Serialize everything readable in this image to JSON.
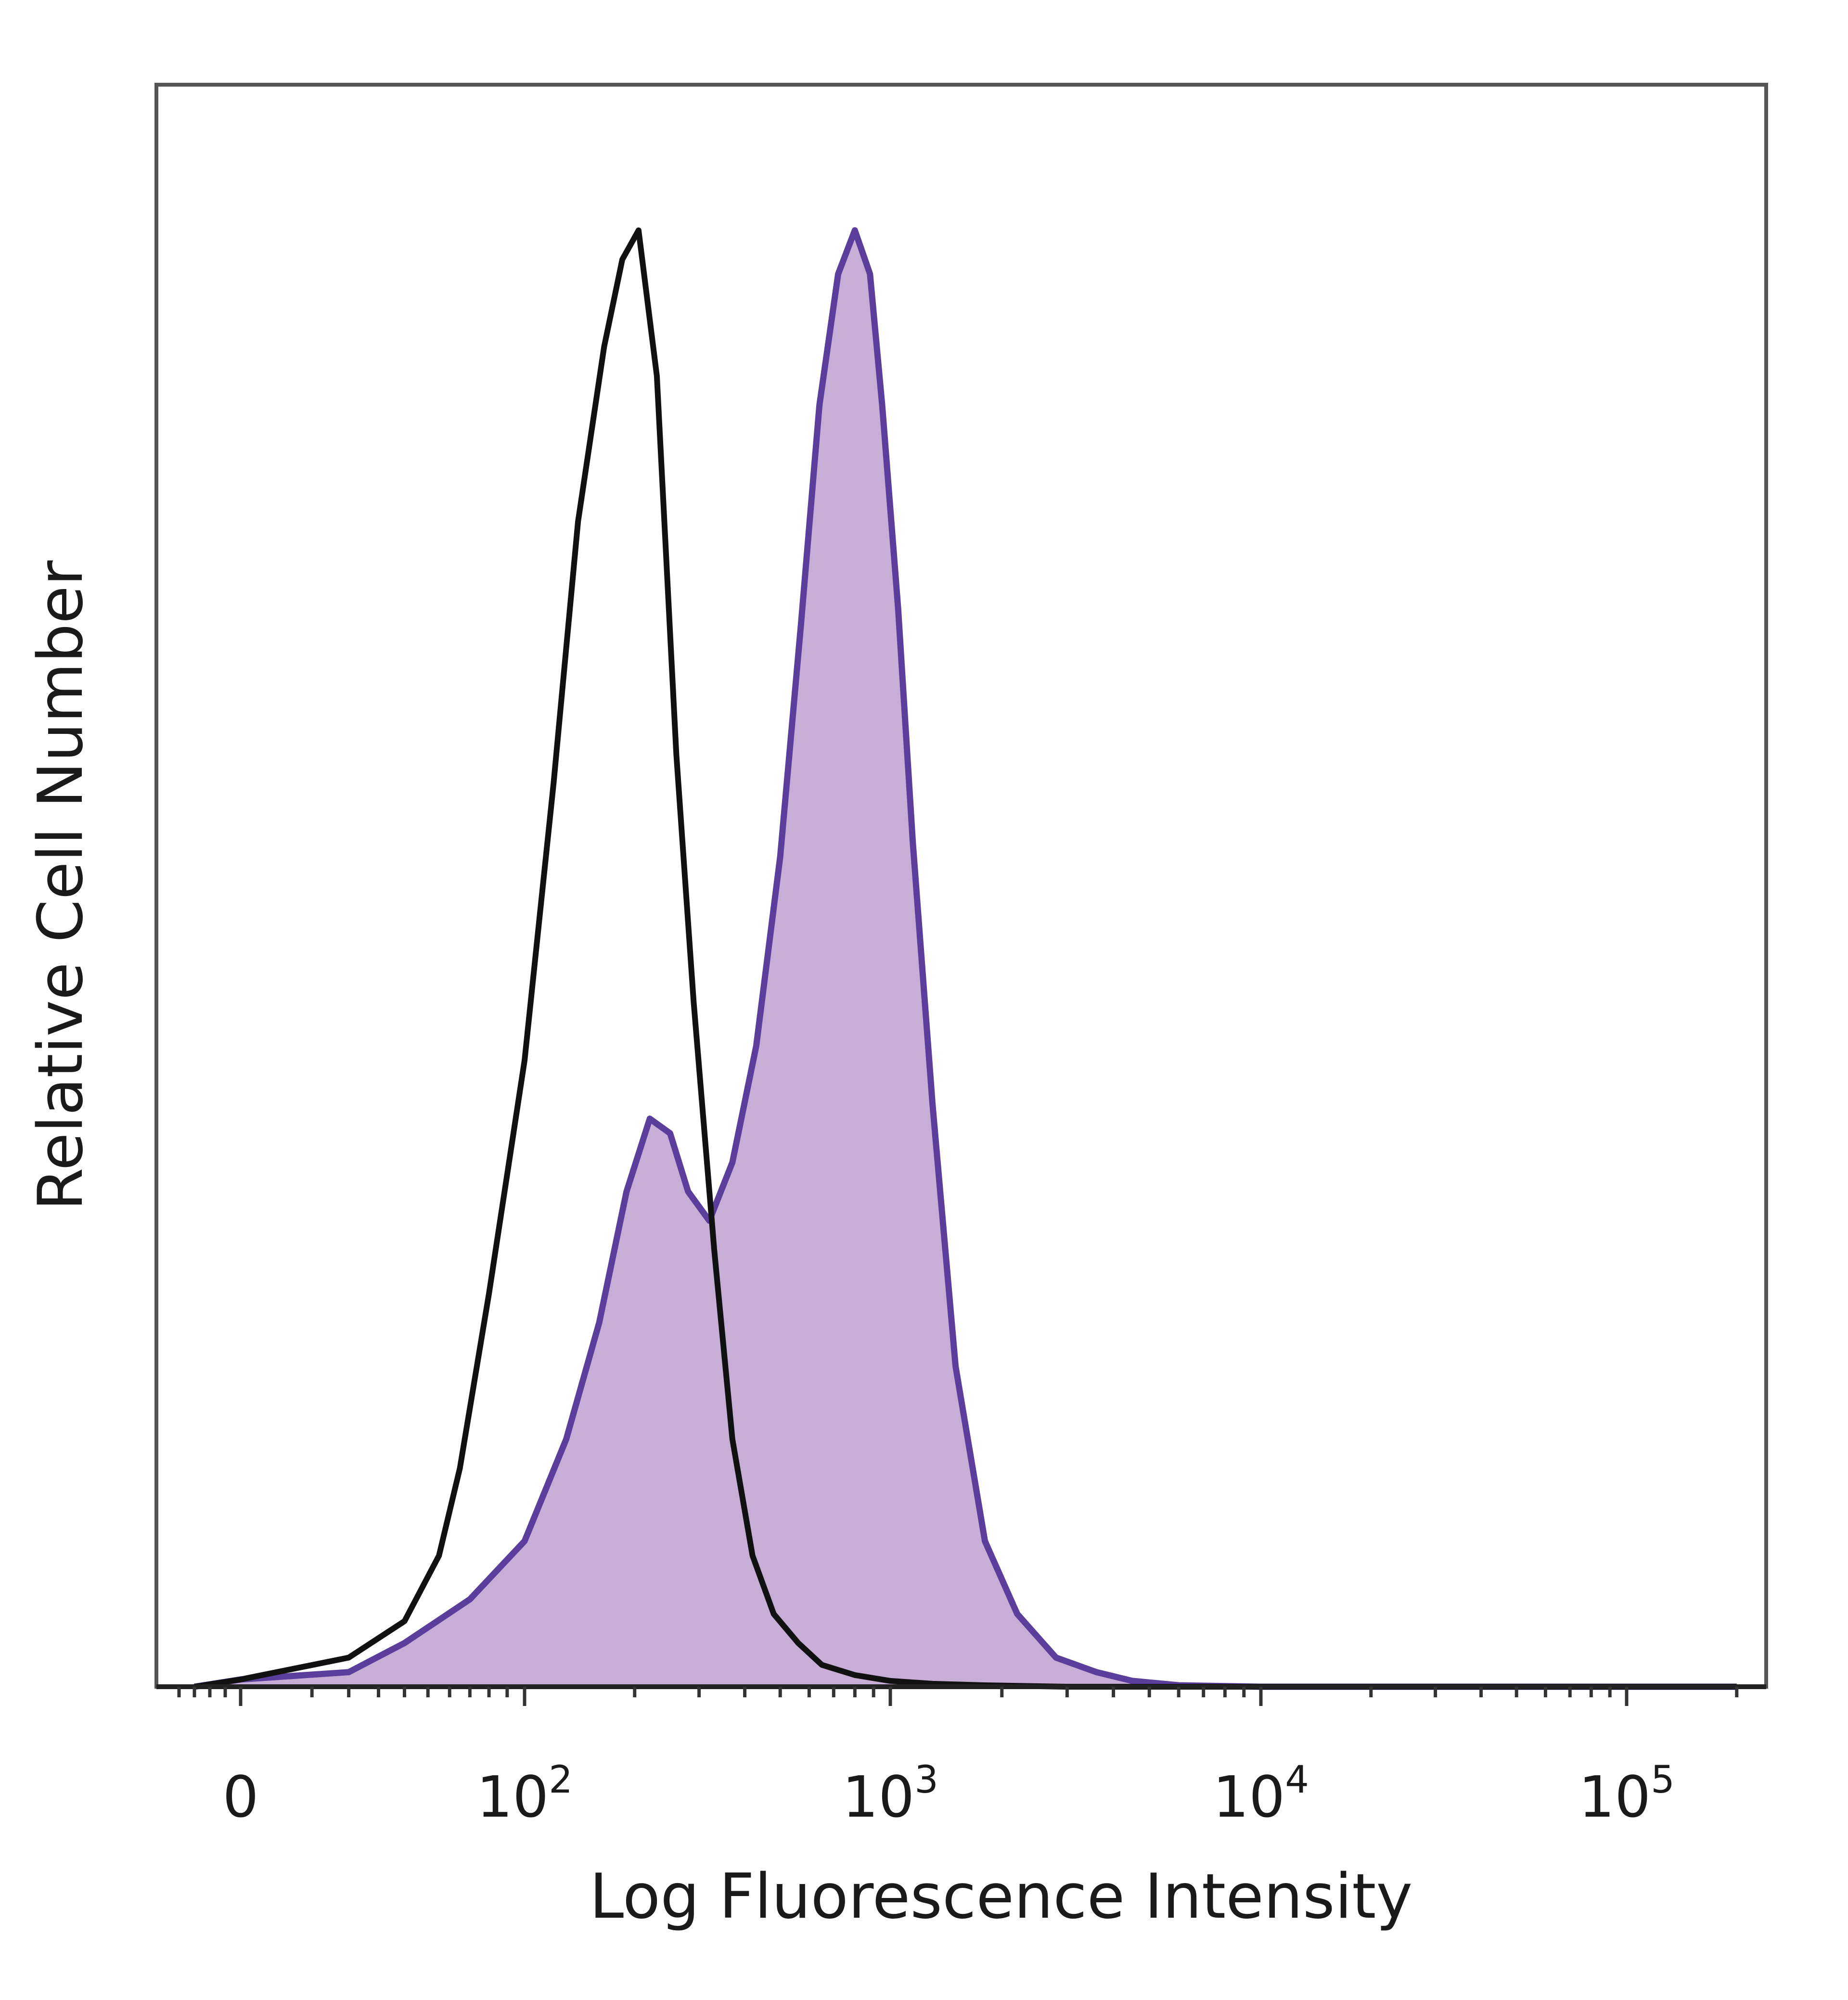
{
  "chart_data": {
    "type": "area",
    "xlabel": "Log Fluorescence Intensity",
    "ylabel": "Relative Cell Number",
    "x_scale": "biexponential",
    "xlim": [
      -50,
      200000
    ],
    "ylim": [
      0,
      1.1
    ],
    "x_ticks": [
      {
        "value": 0,
        "base": "0",
        "exp": ""
      },
      {
        "value": 100,
        "base": "10",
        "exp": "2"
      },
      {
        "value": 1000,
        "base": "10",
        "exp": "3"
      },
      {
        "value": 10000,
        "base": "10",
        "exp": "4"
      },
      {
        "value": 100000,
        "base": "10",
        "exp": "5"
      }
    ],
    "grid": false,
    "legend": "none",
    "series": [
      {
        "style": "outline",
        "color": "#111111",
        "x": [
          -30,
          0,
          20,
          40,
          55,
          65,
          80,
          100,
          120,
          140,
          165,
          185,
          205,
          230,
          260,
          290,
          330,
          370,
          420,
          480,
          560,
          650,
          800,
          1000,
          1300,
          1800,
          3000,
          10000,
          100000,
          200000
        ],
        "y": [
          0.0,
          0.005,
          0.02,
          0.045,
          0.09,
          0.15,
          0.27,
          0.43,
          0.62,
          0.8,
          0.92,
          0.98,
          1.0,
          0.9,
          0.64,
          0.47,
          0.3,
          0.17,
          0.09,
          0.05,
          0.03,
          0.015,
          0.008,
          0.004,
          0.002,
          0.001,
          0.0,
          0.0,
          0.0,
          0.0
        ]
      },
      {
        "style": "filled",
        "color": "#5b3e9c",
        "fill": "#c7aed6",
        "x": [
          -30,
          0,
          20,
          40,
          70,
          100,
          130,
          160,
          190,
          220,
          250,
          280,
          320,
          370,
          430,
          500,
          570,
          640,
          720,
          800,
          880,
          950,
          1050,
          1150,
          1300,
          1500,
          1800,
          2200,
          2800,
          3600,
          4500,
          6000,
          10000,
          100000,
          200000
        ],
        "y": [
          0.0,
          0.005,
          0.01,
          0.03,
          0.06,
          0.1,
          0.17,
          0.25,
          0.34,
          0.39,
          0.38,
          0.34,
          0.32,
          0.36,
          0.44,
          0.57,
          0.73,
          0.88,
          0.97,
          1.0,
          0.97,
          0.88,
          0.74,
          0.58,
          0.4,
          0.22,
          0.1,
          0.05,
          0.02,
          0.01,
          0.004,
          0.001,
          0.0,
          0.0,
          0.0
        ]
      }
    ]
  }
}
